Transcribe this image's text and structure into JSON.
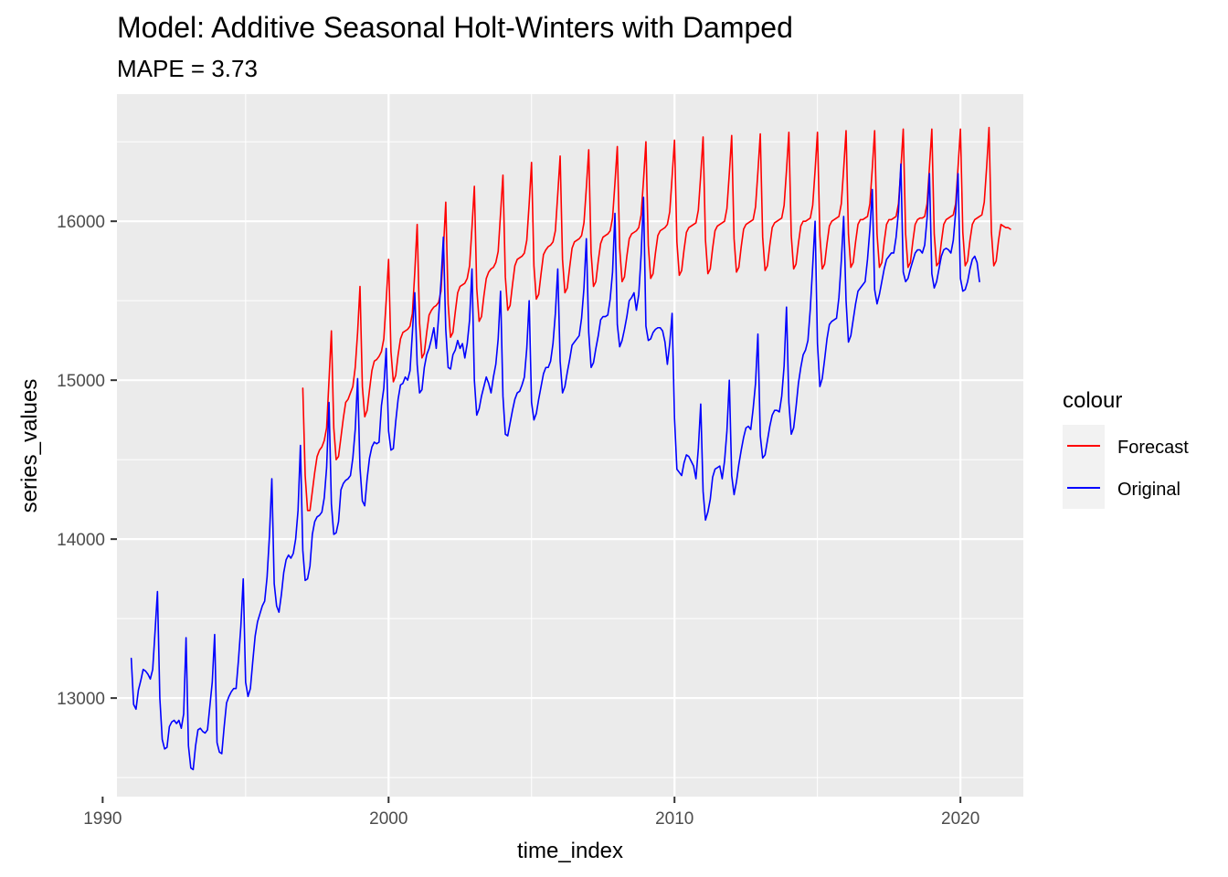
{
  "chart_data": {
    "type": "line",
    "title": "Model:  Additive Seasonal Holt-Winters with Damped",
    "subtitle": "MAPE = 3.73",
    "xlabel": "time_index",
    "ylabel": "series_values",
    "xlim": [
      1990.5,
      2022.2
    ],
    "ylim": [
      12380,
      16800
    ],
    "x_ticks": [
      1990,
      2000,
      2010,
      2020
    ],
    "y_ticks": [
      13000,
      14000,
      15000,
      16000
    ],
    "x_tick_labels": [
      "1990",
      "2000",
      "2010",
      "2020"
    ],
    "y_tick_labels": [
      "13000",
      "14000",
      "15000",
      "16000"
    ],
    "grid": true,
    "legend": {
      "title": "colour",
      "placement": "right"
    },
    "series": [
      {
        "name": "Forecast",
        "color": "#ff0000",
        "x_start": 1997.0,
        "step": 0.0833333,
        "values": [
          14950,
          14400,
          14180,
          14180,
          14300,
          14420,
          14520,
          14560,
          14580,
          14620,
          14700,
          15000,
          15310,
          14700,
          14500,
          14520,
          14640,
          14760,
          14860,
          14880,
          14920,
          14960,
          15080,
          15300,
          15590,
          14960,
          14770,
          14810,
          14940,
          15060,
          15120,
          15130,
          15150,
          15180,
          15260,
          15500,
          15760,
          15180,
          14990,
          15030,
          15160,
          15260,
          15300,
          15310,
          15320,
          15340,
          15420,
          15680,
          15980,
          15360,
          15140,
          15170,
          15300,
          15410,
          15440,
          15460,
          15470,
          15490,
          15560,
          15820,
          16120,
          15480,
          15270,
          15300,
          15430,
          15550,
          15590,
          15600,
          15610,
          15640,
          15720,
          15960,
          16220,
          15580,
          15370,
          15400,
          15530,
          15640,
          15680,
          15700,
          15710,
          15740,
          15810,
          16050,
          16290,
          15650,
          15440,
          15470,
          15600,
          15720,
          15760,
          15770,
          15780,
          15800,
          15880,
          16110,
          16370,
          15720,
          15510,
          15540,
          15670,
          15790,
          15820,
          15840,
          15850,
          15870,
          15940,
          16170,
          16410,
          15760,
          15550,
          15580,
          15710,
          15830,
          15870,
          15880,
          15890,
          15910,
          15990,
          16210,
          16450,
          15800,
          15590,
          15620,
          15750,
          15860,
          15900,
          15910,
          15920,
          15940,
          16020,
          16240,
          16470,
          15830,
          15620,
          15650,
          15780,
          15890,
          15920,
          15930,
          15940,
          15960,
          16040,
          16260,
          16500,
          15850,
          15640,
          15670,
          15800,
          15910,
          15940,
          15950,
          15960,
          15980,
          16060,
          16280,
          16510,
          15870,
          15660,
          15690,
          15820,
          15930,
          15960,
          15970,
          15980,
          15990,
          16070,
          16290,
          16530,
          15880,
          15670,
          15700,
          15830,
          15940,
          15970,
          15980,
          15990,
          16000,
          16080,
          16300,
          16540,
          15890,
          15680,
          15710,
          15840,
          15950,
          15980,
          15990,
          16000,
          16010,
          16090,
          16310,
          16550,
          15900,
          15690,
          15720,
          15850,
          15960,
          15990,
          16000,
          16010,
          16020,
          16100,
          16320,
          16560,
          15910,
          15700,
          15730,
          15860,
          15970,
          16000,
          16000,
          16010,
          16020,
          16100,
          16320,
          16560,
          15910,
          15700,
          15730,
          15860,
          15970,
          16000,
          16010,
          16020,
          16030,
          16110,
          16330,
          16570,
          15920,
          15710,
          15740,
          15870,
          15980,
          16010,
          16010,
          16020,
          16030,
          16110,
          16330,
          16570,
          15920,
          15710,
          15740,
          15870,
          15980,
          16010,
          16010,
          16020,
          16030,
          16110,
          16330,
          16580,
          15920,
          15710,
          15740,
          15870,
          15980,
          16010,
          16020,
          16020,
          16030,
          16110,
          16340,
          16580,
          15920,
          15720,
          15740,
          15870,
          15980,
          16010,
          16020,
          16030,
          16040,
          16110,
          16340,
          16580,
          15930,
          15720,
          15750,
          15880,
          15980,
          16010,
          16020,
          16030,
          16040,
          16120,
          16340,
          16590,
          15930,
          15720,
          15750,
          15880,
          15980,
          15970,
          15960,
          15960,
          15950
        ]
      },
      {
        "name": "Original",
        "color": "#0000ff",
        "x_start": 1991.0,
        "step": 0.0833333,
        "values": [
          13250,
          12960,
          12930,
          13050,
          13110,
          13180,
          13170,
          13150,
          13120,
          13180,
          13420,
          13670,
          13000,
          12740,
          12680,
          12690,
          12820,
          12850,
          12860,
          12840,
          12860,
          12810,
          12900,
          13380,
          12700,
          12560,
          12550,
          12700,
          12800,
          12810,
          12790,
          12780,
          12800,
          12950,
          13100,
          13400,
          12720,
          12660,
          12650,
          12820,
          12970,
          13010,
          13040,
          13060,
          13060,
          13240,
          13450,
          13750,
          13100,
          13010,
          13060,
          13230,
          13390,
          13480,
          13530,
          13580,
          13610,
          13760,
          14020,
          14380,
          13720,
          13580,
          13540,
          13650,
          13790,
          13870,
          13900,
          13880,
          13910,
          14000,
          14180,
          14590,
          13930,
          13740,
          13750,
          13830,
          14030,
          14110,
          14140,
          14150,
          14170,
          14260,
          14450,
          14860,
          14220,
          14030,
          14040,
          14110,
          14310,
          14350,
          14370,
          14380,
          14400,
          14510,
          14690,
          15010,
          14450,
          14240,
          14210,
          14380,
          14510,
          14580,
          14610,
          14600,
          14610,
          14840,
          14950,
          15200,
          14680,
          14560,
          14570,
          14740,
          14880,
          14970,
          14980,
          15020,
          15000,
          15060,
          15300,
          15550,
          15100,
          14920,
          14940,
          15080,
          15160,
          15200,
          15260,
          15330,
          15200,
          15400,
          15620,
          15900,
          15320,
          15080,
          15070,
          15160,
          15190,
          15250,
          15200,
          15230,
          15140,
          15230,
          15380,
          15700,
          15000,
          14780,
          14820,
          14900,
          14960,
          15020,
          14980,
          14920,
          15020,
          15100,
          15260,
          15560,
          14900,
          14660,
          14650,
          14730,
          14810,
          14880,
          14920,
          14930,
          14970,
          15020,
          15200,
          15500,
          14860,
          14750,
          14790,
          14880,
          14960,
          15040,
          15080,
          15080,
          15120,
          15230,
          15420,
          15700,
          15120,
          14920,
          14960,
          15050,
          15130,
          15220,
          15240,
          15260,
          15280,
          15390,
          15580,
          15890,
          15300,
          15080,
          15110,
          15200,
          15280,
          15380,
          15400,
          15400,
          15410,
          15510,
          15680,
          16050,
          15350,
          15210,
          15250,
          15320,
          15400,
          15500,
          15520,
          15550,
          15440,
          15540,
          15790,
          16150,
          15340,
          15250,
          15260,
          15300,
          15320,
          15330,
          15330,
          15310,
          15240,
          15100,
          15230,
          15420,
          14760,
          14440,
          14420,
          14400,
          14480,
          14530,
          14520,
          14490,
          14460,
          14380,
          14570,
          14850,
          14300,
          14120,
          14170,
          14250,
          14390,
          14440,
          14450,
          14460,
          14380,
          14490,
          14680,
          15000,
          14400,
          14280,
          14360,
          14470,
          14560,
          14640,
          14700,
          14710,
          14690,
          14820,
          14980,
          15290,
          14650,
          14510,
          14530,
          14620,
          14710,
          14780,
          14810,
          14810,
          14800,
          14900,
          15090,
          15460,
          14860,
          14660,
          14700,
          14830,
          14980,
          15080,
          15160,
          15190,
          15250,
          15450,
          15720,
          16000,
          15230,
          14960,
          15010,
          15130,
          15260,
          15350,
          15370,
          15380,
          15390,
          15520,
          15750,
          16030,
          15500,
          15240,
          15280,
          15380,
          15480,
          15560,
          15580,
          15600,
          15620,
          15760,
          15950,
          16200,
          15570,
          15480,
          15540,
          15620,
          15700,
          15760,
          15780,
          15800,
          15800,
          15900,
          16060,
          16360,
          15680,
          15620,
          15640,
          15700,
          15750,
          15800,
          15820,
          15820,
          15800,
          15850,
          16020,
          16300,
          15670,
          15580,
          15620,
          15700,
          15780,
          15820,
          15830,
          15820,
          15800,
          15880,
          16060,
          16300,
          15640,
          15560,
          15570,
          15620,
          15700,
          15760,
          15780,
          15740,
          15620
        ]
      }
    ]
  }
}
